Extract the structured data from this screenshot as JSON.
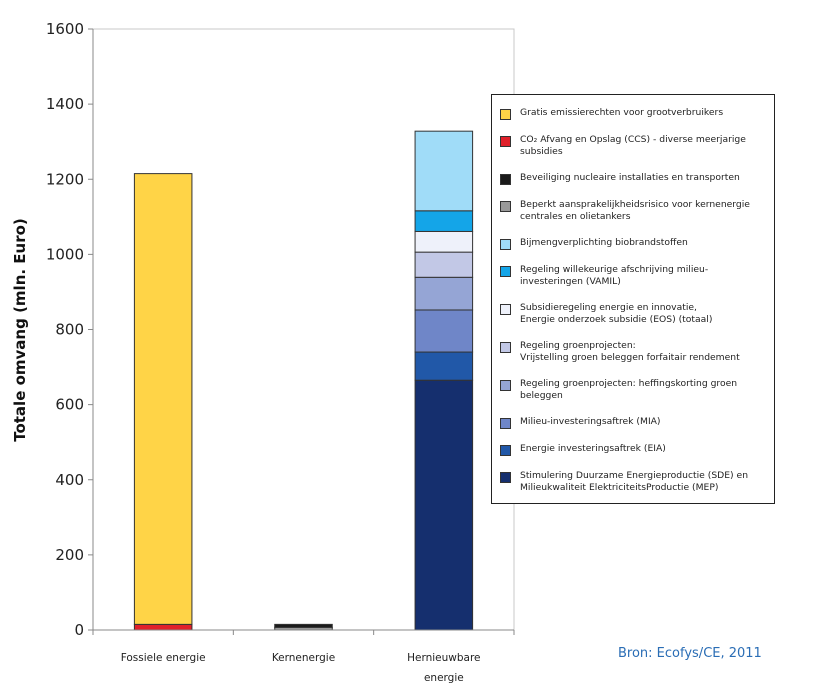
{
  "chart_data": {
    "type": "bar",
    "stacked": true,
    "ylabel": "Totale omvang (mln. Euro)",
    "ylim": [
      0,
      1600
    ],
    "yticks": [
      0,
      200,
      400,
      600,
      800,
      1000,
      1200,
      1400,
      1600
    ],
    "grid": false,
    "legend_position": "right",
    "categories": [
      "Fossiele energie",
      "Kernenergie",
      "Hernieuwbare\nenergie"
    ],
    "series": [
      {
        "name": "Gratis emissierechten voor grootverbruikers",
        "color": "#ffd447",
        "values": [
          1200,
          0,
          0
        ]
      },
      {
        "name": "CO₂ Afvang en Opslag (CCS) - diverse meerjarige subsidies",
        "color": "#e0202a",
        "values": [
          15,
          0,
          0
        ]
      },
      {
        "name": "Beveiliging nucleaire installaties en transporten",
        "color": "#1a1a1a",
        "values": [
          0,
          8,
          0
        ]
      },
      {
        "name": "Beperkt aansprakelijkheidsrisico voor kernenergie\ncentrales en olietankers",
        "color": "#999999",
        "values": [
          0,
          7,
          0
        ]
      },
      {
        "name": "Bijmengverplichting biobrandstoffen",
        "color": "#a0dcf8",
        "values": [
          0,
          0,
          212
        ]
      },
      {
        "name": "Regeling willekeurige afschrijving milieu-investeringen (VAMIL)",
        "color": "#14a5e8",
        "values": [
          0,
          0,
          55
        ]
      },
      {
        "name": "Subsidieregeling energie en innovatie,\nEnergie onderzoek subsidie (EOS) (totaal)",
        "color": "#eef1fa",
        "values": [
          0,
          0,
          55
        ]
      },
      {
        "name": "Regeling groenprojecten:\nVrijstelling groen beleggen forfaitair rendement",
        "color": "#c2c8e6",
        "values": [
          0,
          0,
          67
        ]
      },
      {
        "name": "Regeling groenprojecten: heffingskorting groen beleggen",
        "color": "#95a5d5",
        "values": [
          0,
          0,
          87
        ]
      },
      {
        "name": "Milieu-investeringsaftrek (MIA)",
        "color": "#6f86c8",
        "values": [
          0,
          0,
          112
        ]
      },
      {
        "name": "Energie investeringsaftrek (EIA)",
        "color": "#2158a8",
        "values": [
          0,
          0,
          75
        ]
      },
      {
        "name": "Stimulering Duurzame Energieproductie (SDE) en\nMilieukwaliteit ElektriciteitsProductie (MEP)",
        "color": "#152f6e",
        "values": [
          0,
          0,
          665
        ]
      }
    ]
  },
  "source": "Bron: Ecofys/CE, 2011"
}
